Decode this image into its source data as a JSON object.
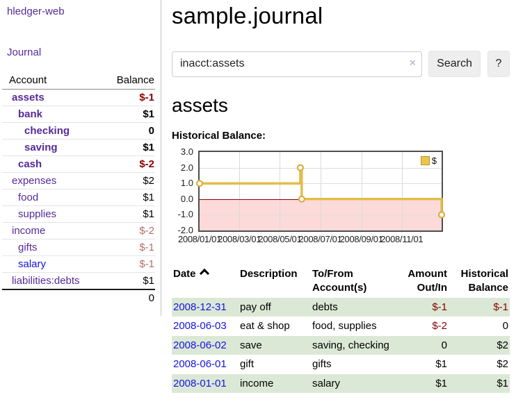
{
  "app": {
    "title": "hledger-web"
  },
  "colors": {
    "link_purple": "#552a99",
    "link_blue": "#1414e0",
    "negative_strong": "#8b0000",
    "negative_soft": "#b36d6d",
    "row_stripe_green": "#dbe8d6",
    "chart_negative_region": "#fcdada",
    "chart_zero_line": "#8b0000",
    "chart_line_gold": "#e3bd49",
    "chart_border": "#4d4d4d"
  },
  "icons": {
    "clear_search": "x-icon (×)",
    "sort_ascending": "chevron-up-icon"
  },
  "sidebar": {
    "journal_link": "Journal",
    "accounts": {
      "header_account": "Account",
      "header_balance": "Balance",
      "rows": [
        {
          "name": "assets",
          "depth": 1,
          "bold": true,
          "balance": "$-1",
          "tone": "neg-strong"
        },
        {
          "name": "bank",
          "depth": 2,
          "bold": true,
          "balance": "$1",
          "tone": "pos"
        },
        {
          "name": "checking",
          "depth": 3,
          "bold": true,
          "balance": "0",
          "tone": "pos"
        },
        {
          "name": "saving",
          "depth": 3,
          "bold": true,
          "balance": "$1",
          "tone": "pos"
        },
        {
          "name": "cash",
          "depth": 2,
          "bold": true,
          "balance": "$-2",
          "tone": "neg-strong"
        },
        {
          "name": "expenses",
          "depth": 1,
          "bold": false,
          "balance": "$2",
          "tone": "pos"
        },
        {
          "name": "food",
          "depth": 2,
          "bold": false,
          "balance": "$1",
          "tone": "pos"
        },
        {
          "name": "supplies",
          "depth": 2,
          "bold": false,
          "balance": "$1",
          "tone": "pos"
        },
        {
          "name": "income",
          "depth": 1,
          "bold": false,
          "balance": "$-2",
          "tone": "neg-soft"
        },
        {
          "name": "gifts",
          "depth": 2,
          "bold": false,
          "balance": "$-1",
          "tone": "neg-soft"
        },
        {
          "name": "salary",
          "depth": 2,
          "bold": false,
          "balance": "$-1",
          "tone": "neg-soft",
          "link_color": "blue"
        },
        {
          "name": "liabilities:debts",
          "depth": 1,
          "bold": false,
          "balance": "$1",
          "tone": "pos"
        }
      ],
      "total": "0"
    }
  },
  "main": {
    "title": "sample.journal",
    "search": {
      "value": "inacct:assets",
      "clear_icon": "×",
      "button_label": "Search",
      "help_label": "?"
    },
    "account_heading": "assets",
    "chart_label": "Historical Balance:",
    "register": {
      "headers": [
        "Date",
        "Description",
        "To/From\nAccount(s)",
        "Amount\nOut/In",
        "Historical\nBalance"
      ],
      "rows": [
        {
          "date": "2008-12-31",
          "description": "pay off",
          "accounts": "debts",
          "amount": "$-1",
          "balance": "$-1"
        },
        {
          "date": "2008-06-03",
          "description": "eat & shop",
          "accounts": "food, supplies",
          "amount": "$-2",
          "balance": "0"
        },
        {
          "date": "2008-06-02",
          "description": "save",
          "accounts": "saving, checking",
          "amount": "0",
          "balance": "$2"
        },
        {
          "date": "2008-06-01",
          "description": "gift",
          "accounts": "gifts",
          "amount": "$1",
          "balance": "$2"
        },
        {
          "date": "2008-01-01",
          "description": "income",
          "accounts": "salary",
          "amount": "$1",
          "balance": "$1"
        }
      ]
    }
  },
  "chart_data": {
    "type": "line",
    "step": true,
    "title": "Historical Balance",
    "legend": [
      "$"
    ],
    "legend_position": "top-right",
    "grid": true,
    "x_type": "date",
    "x_range": [
      "2008-01-01",
      "2008-12-31"
    ],
    "x_tick_labels": [
      "2008/01/01",
      "2008/03/01",
      "2008/05/01",
      "2008/07/01",
      "2008/09/01",
      "2008/11/01"
    ],
    "ylim": [
      -2.0,
      3.0
    ],
    "y_ticks": [
      3.0,
      2.0,
      1.0,
      0.0,
      -1.0,
      -2.0
    ],
    "series": [
      {
        "name": "$",
        "color": "#e3bd49",
        "marker_color": "#d9ae3e",
        "points": [
          [
            "2008-01-01",
            1
          ],
          [
            "2008-06-01",
            2
          ],
          [
            "2008-06-03",
            0
          ],
          [
            "2008-12-31",
            -1
          ]
        ]
      }
    ],
    "negative_region_shaded": true
  }
}
